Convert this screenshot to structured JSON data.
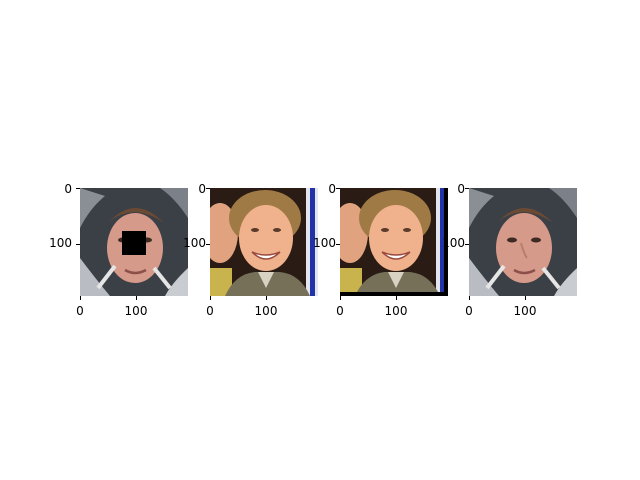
{
  "figure": {
    "panels": [
      {
        "id": "panel-1",
        "description": "",
        "ytick_labels": [
          "0",
          "100"
        ],
        "xtick_labels": [
          "0",
          "100"
        ]
      },
      {
        "id": "panel-2",
        "ytick_labels": [
          "0",
          "100"
        ],
        "xtick_labels": [
          "0",
          "100"
        ]
      },
      {
        "id": "panel-3",
        "ytick_labels": [
          "0",
          "100"
        ],
        "xtick_labels": [
          "0",
          "100"
        ]
      },
      {
        "id": "panel-4",
        "ytick_labels": [
          "0",
          "100"
        ],
        "xtick_labels": [
          "0",
          "100"
        ]
      }
    ]
  }
}
